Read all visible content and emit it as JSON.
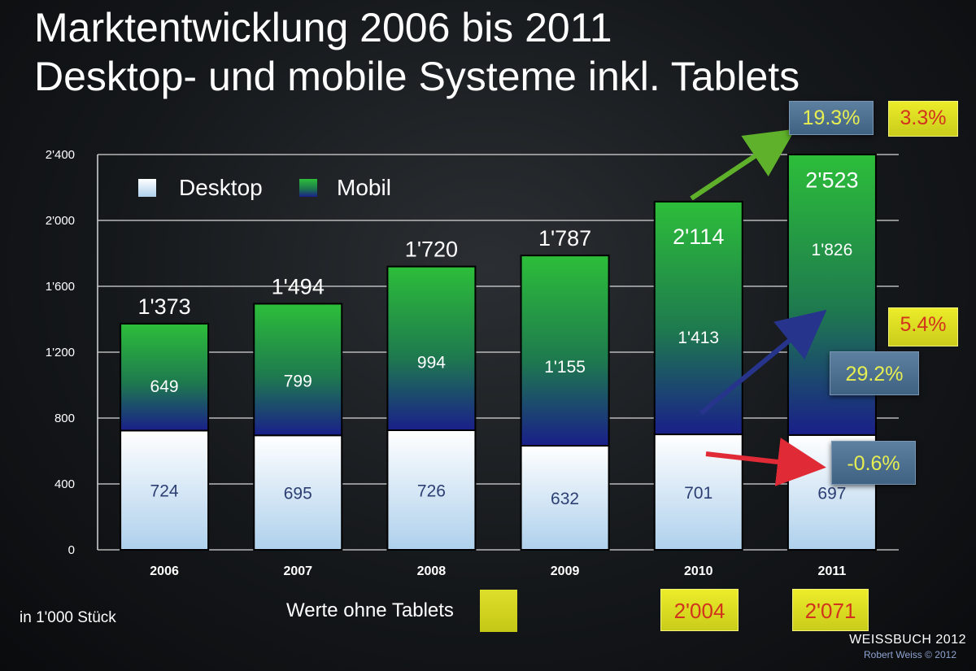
{
  "title": {
    "line1": "Marktentwicklung 2006 bis 2011",
    "line2": "Desktop- und mobile Systeme inkl. Tablets"
  },
  "unit_note": "in 1'000 Stück",
  "tablet_note": {
    "label": "Werte ohne Tablets",
    "values": [
      "2'004",
      "2'071"
    ]
  },
  "footer": {
    "title": "WEISSBUCH 2012",
    "credit": "Robert Weiss © 2012"
  },
  "annotations": {
    "mobile_growth": "19.3%",
    "total_growth": "29.2%",
    "desktop_growth": "-0.6%",
    "growth_without_tablets_top": "3.3%",
    "growth_without_tablets_mid": "5.4%"
  },
  "colors": {
    "desktop_top": "#ffffff",
    "desktop_bottom": "#aed0ec",
    "mobile_top": "#2dbe3a",
    "mobile_bottom": "#1a1f8a",
    "arrow_green": "#5fb02a",
    "arrow_blue": "#26348c",
    "arrow_red": "#e02a36",
    "highlight_yellow": "#e3e32a"
  },
  "chart_data": {
    "type": "bar",
    "stacked": true,
    "categories": [
      "2006",
      "2007",
      "2008",
      "2009",
      "2010",
      "2011"
    ],
    "series": [
      {
        "name": "Desktop",
        "values": [
          724,
          695,
          726,
          632,
          701,
          697
        ],
        "labels": [
          "724",
          "695",
          "726",
          "632",
          "701",
          "697"
        ]
      },
      {
        "name": "Mobil",
        "values": [
          649,
          799,
          994,
          1155,
          1413,
          1826
        ],
        "labels": [
          "649",
          "799",
          "994",
          "1'155",
          "1'413",
          "1'826"
        ]
      }
    ],
    "totals": [
      1373,
      1494,
      1720,
      1787,
      2114,
      2523
    ],
    "total_labels": [
      "1'373",
      "1'494",
      "1'720",
      "1'787",
      "2'114",
      "2'523"
    ],
    "ylim": [
      0,
      2400
    ],
    "yticks": [
      0,
      400,
      800,
      1200,
      1600,
      2000,
      2400
    ],
    "ytick_labels": [
      "0",
      "400",
      "800",
      "1'200",
      "1'600",
      "2'000",
      "2'400"
    ],
    "grid": true,
    "legend_position": "top-left",
    "xlabel": "",
    "ylabel": ""
  }
}
